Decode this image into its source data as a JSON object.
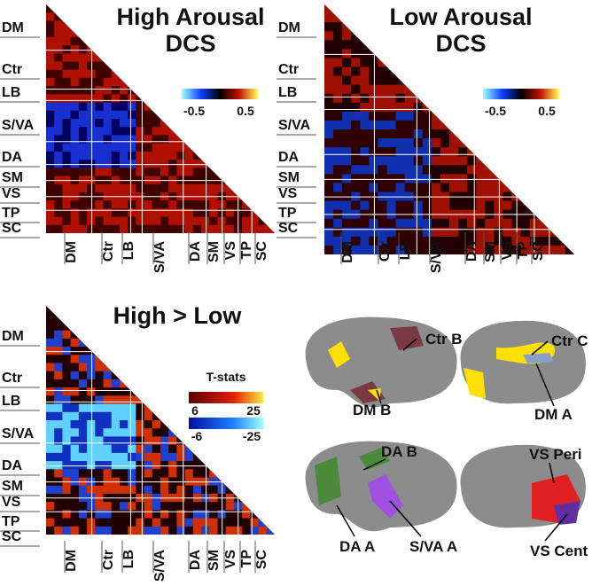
{
  "panels": [
    {
      "title": [
        "High Arousal",
        "DCS"
      ],
      "colorbar": {
        "ticks": [
          -0.5,
          0.5
        ]
      },
      "row_labels": [
        "DM",
        "Ctr",
        "LB",
        "S/VA",
        "DA",
        "SM",
        "VS",
        "TP",
        "SC"
      ],
      "col_labels": [
        "DM",
        "Ctr",
        "LB",
        "S/VA",
        "DA",
        "SM",
        "VS",
        "TP",
        "SC"
      ]
    },
    {
      "title": [
        "Low Arousal",
        "DCS"
      ],
      "colorbar": {
        "ticks": [
          -0.5,
          0.5
        ]
      },
      "row_labels": [
        "DM",
        "Ctr",
        "LB",
        "S/VA",
        "DA",
        "SM",
        "VS",
        "TP",
        "SC"
      ],
      "col_labels": [
        "DM",
        "Ctr",
        "LB",
        "S/VA",
        "DA",
        "SM",
        "VS",
        "TP",
        "SC"
      ]
    },
    {
      "title": [
        "High > Low"
      ],
      "colorbar": {
        "title": "T-stats",
        "pos_ticks": [
          6,
          25
        ],
        "neg_ticks": [
          -6,
          -25
        ]
      },
      "row_labels": [
        "DM",
        "Ctr",
        "LB",
        "S/VA",
        "DA",
        "SM",
        "VS",
        "TP",
        "SC"
      ],
      "col_labels": [
        "DM",
        "Ctr",
        "LB",
        "S/VA",
        "DA",
        "SM",
        "VS",
        "TP",
        "SC"
      ]
    }
  ],
  "brain_labels": [
    "Ctr B",
    "Ctr C",
    "DM B",
    "DM A",
    "DA B",
    "VS Peri",
    "DA A",
    "S/VA A",
    "VS Cent"
  ]
}
